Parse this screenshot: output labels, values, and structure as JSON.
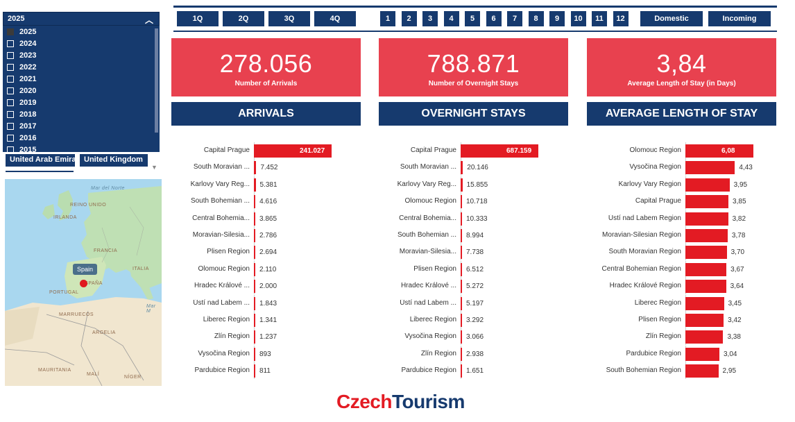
{
  "year_filter": {
    "selected": "2025",
    "years": [
      "2025",
      "2024",
      "2023",
      "2022",
      "2021",
      "2020",
      "2019",
      "2018",
      "2017",
      "2016",
      "2015"
    ],
    "checked_index": 0
  },
  "countries": [
    "United Arab Emira",
    "United Kingdom"
  ],
  "quarters": [
    "1Q",
    "2Q",
    "3Q",
    "4Q"
  ],
  "months": [
    "1",
    "2",
    "3",
    "4",
    "5",
    "6",
    "7",
    "8",
    "9",
    "10",
    "11",
    "12"
  ],
  "segments": [
    "Domestic",
    "Incoming"
  ],
  "map": {
    "tooltip": "Spain",
    "labels": {
      "mar_del_norte": "Mar del Norte",
      "reino_unido": "REINO UNIDO",
      "irlanda": "IRLANDA",
      "francia": "FRANCIA",
      "italia": "ITALIA",
      "espana": "ESPAÑA",
      "portugal": "PORTUGAL",
      "marruecos": "MARRUECOS",
      "argelia": "ARGELIA",
      "mauritania": "MAURITANIA",
      "mali": "MALÍ",
      "niger": "NÍGER",
      "mar_med": "Mar M"
    }
  },
  "kpis": [
    {
      "value": "278.056",
      "label": "Number of Arrivals",
      "header": "ARRIVALS"
    },
    {
      "value": "788.871",
      "label": "Number of Overnight Stays",
      "header": "OVERNIGHT STAYS"
    },
    {
      "value": "3,84",
      "label": "Average Length of Stay (in Days)",
      "header": "AVERAGE LENGTH OF STAY"
    }
  ],
  "arrivals": {
    "labels": [
      "Capital Prague",
      "South Moravian ...",
      "Karlovy Vary Reg...",
      "South Bohemian ...",
      "Central Bohemia...",
      "Moravian-Silesia...",
      "Plisen Region",
      "Olomouc Region",
      "Hradec Králové ...",
      "Ústí nad Labem ...",
      "Liberec Region",
      "Zlín Region",
      "Vysočina Region",
      "Pardubice Region"
    ],
    "values": [
      241027,
      7452,
      5381,
      4616,
      3865,
      2786,
      2694,
      2110,
      2000,
      1843,
      1341,
      1237,
      893,
      811
    ],
    "display": [
      "241.027",
      "7.452",
      "5.381",
      "4.616",
      "3.865",
      "2.786",
      "2.694",
      "2.110",
      "2.000",
      "1.843",
      "1.341",
      "1.237",
      "893",
      "811"
    ]
  },
  "overnight": {
    "labels": [
      "Capital Prague",
      "South Moravian ...",
      "Karlovy Vary Reg...",
      "Olomouc Region",
      "Central Bohemia...",
      "South Bohemian ...",
      "Moravian-Silesia...",
      "Plisen Region",
      "Hradec Králové ...",
      "Ústí nad Labem ...",
      "Liberec Region",
      "Vysočina Region",
      "Zlín Region",
      "Pardubice Region"
    ],
    "values": [
      687159,
      20146,
      15855,
      10718,
      10333,
      8994,
      7738,
      6512,
      5272,
      5197,
      3292,
      3066,
      2938,
      1651
    ],
    "display": [
      "687.159",
      "20.146",
      "15.855",
      "10.718",
      "10.333",
      "8.994",
      "7.738",
      "6.512",
      "5.272",
      "5.197",
      "3.292",
      "3.066",
      "2.938",
      "1.651"
    ]
  },
  "avg_stay": {
    "labels": [
      "Olomouc Region",
      "Vysočina Region",
      "Karlovy Vary Region",
      "Capital Prague",
      "Ústí nad Labem Region",
      "Moravian-Silesian Region",
      "South Moravian Region",
      "Central Bohemian Region",
      "Hradec Králové Region",
      "Liberec Region",
      "Plisen Region",
      "Zlín Region",
      "Pardubice Region",
      "South Bohemian Region"
    ],
    "values": [
      6.08,
      4.43,
      3.95,
      3.85,
      3.82,
      3.78,
      3.7,
      3.67,
      3.64,
      3.45,
      3.42,
      3.38,
      3.04,
      2.95
    ],
    "display": [
      "6,08",
      "4,43",
      "3,95",
      "3,85",
      "3,82",
      "3,78",
      "3,70",
      "3,67",
      "3,64",
      "3,45",
      "3,42",
      "3,38",
      "3,04",
      "2,95"
    ]
  },
  "logo": {
    "part1": "Czech",
    "part2": "Tourism"
  },
  "colors": {
    "navy": "#163a6e",
    "red": "#e8414f",
    "bar": "#e31b23"
  }
}
